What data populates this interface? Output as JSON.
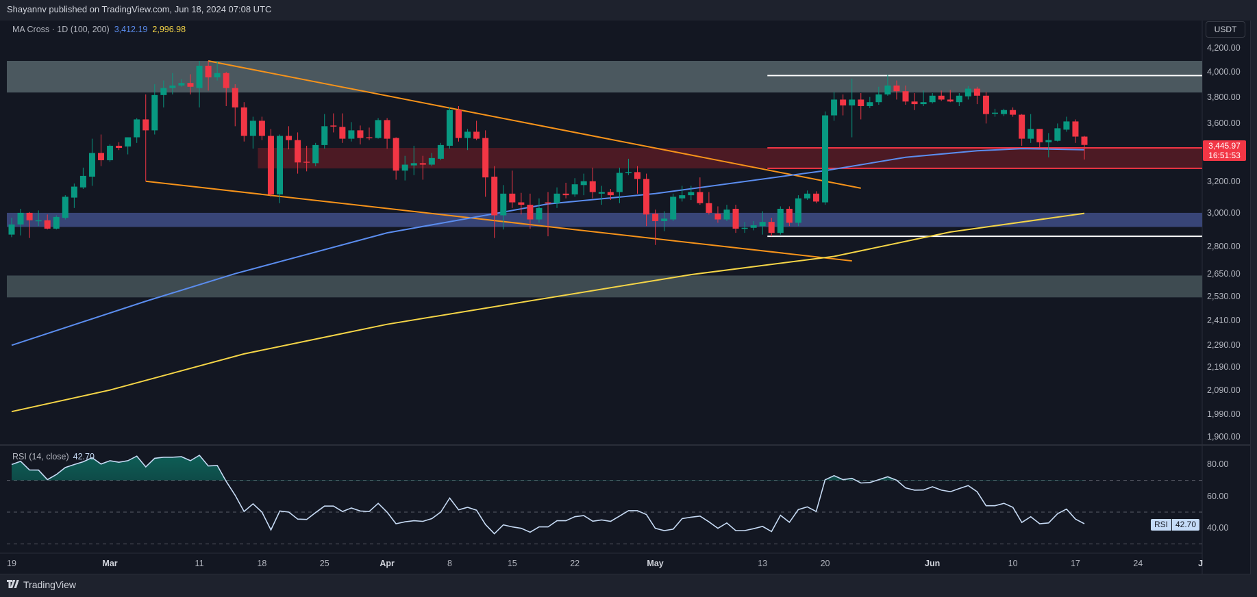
{
  "header": {
    "published": "Shayannv published on TradingView.com, Jun 18, 2024 07:08 UTC"
  },
  "legend": {
    "name": "MA Cross · 1D (100, 200)",
    "ma100": "3,412.19",
    "ma200": "2,996.98"
  },
  "currency": "USDT",
  "price_axis": [
    {
      "label": "4,200.00",
      "value": 4200
    },
    {
      "label": "4,000.00",
      "value": 4000
    },
    {
      "label": "3,800.00",
      "value": 3800
    },
    {
      "label": "3,600.00",
      "value": 3600
    },
    {
      "label": "3,200.00",
      "value": 3200
    },
    {
      "label": "3,000.00",
      "value": 3000
    },
    {
      "label": "2,800.00",
      "value": 2800
    },
    {
      "label": "2,650.00",
      "value": 2650
    },
    {
      "label": "2,530.00",
      "value": 2530
    },
    {
      "label": "2,410.00",
      "value": 2410
    },
    {
      "label": "2,290.00",
      "value": 2290
    },
    {
      "label": "2,190.00",
      "value": 2190
    },
    {
      "label": "2,090.00",
      "value": 2090
    },
    {
      "label": "1,990.00",
      "value": 1990
    },
    {
      "label": "1,900.00",
      "value": 1900
    }
  ],
  "current_price": {
    "value": "3,445.97",
    "countdown": "16:51:53"
  },
  "rsi": {
    "legend": "RSI (14, close)",
    "value": "42.70",
    "tag": "RSI",
    "axis": [
      {
        "label": "80.00",
        "value": 80
      },
      {
        "label": "60.00",
        "value": 60
      },
      {
        "label": "40.00",
        "value": 40
      }
    ],
    "levels": [
      70,
      50,
      30
    ]
  },
  "time_axis": [
    {
      "label": "19",
      "date": "2024-02-19",
      "bold": false
    },
    {
      "label": "Mar",
      "date": "2024-03-01",
      "bold": true
    },
    {
      "label": "11",
      "date": "2024-03-11",
      "bold": false
    },
    {
      "label": "18",
      "date": "2024-03-18",
      "bold": false
    },
    {
      "label": "25",
      "date": "2024-03-25",
      "bold": false
    },
    {
      "label": "Apr",
      "date": "2024-04-01",
      "bold": true
    },
    {
      "label": "8",
      "date": "2024-04-08",
      "bold": false
    },
    {
      "label": "15",
      "date": "2024-04-15",
      "bold": false
    },
    {
      "label": "22",
      "date": "2024-04-22",
      "bold": false
    },
    {
      "label": "May",
      "date": "2024-05-01",
      "bold": true
    },
    {
      "label": "13",
      "date": "2024-05-13",
      "bold": false
    },
    {
      "label": "20",
      "date": "2024-05-20",
      "bold": false
    },
    {
      "label": "Jun",
      "date": "2024-06-01",
      "bold": true
    },
    {
      "label": "10",
      "date": "2024-06-10",
      "bold": false
    },
    {
      "label": "17",
      "date": "2024-06-17",
      "bold": false
    },
    {
      "label": "24",
      "date": "2024-06-24",
      "bold": false
    },
    {
      "label": "J",
      "date": "2024-07-01",
      "bold": true
    }
  ],
  "footer": {
    "brand": "TradingView",
    "logo_icon": "tradingview-logo-icon"
  },
  "colors": {
    "up": "#089981",
    "down": "#f23645",
    "ma100": "#5b8def",
    "ma200": "#f5d547",
    "trendline": "#f7931a",
    "rsi_line": "#c7dbf5",
    "background": "#131722"
  },
  "chart_data": {
    "type": "candlestick",
    "symbol_currency": "USDT",
    "y_scale": "log",
    "ylim": [
      1870,
      4280
    ],
    "candle_fields": [
      "date",
      "open",
      "high",
      "low",
      "close"
    ],
    "candles": [
      [
        "2024-02-19",
        2870,
        2970,
        2855,
        2930
      ],
      [
        "2024-02-20",
        2930,
        3025,
        2865,
        3000
      ],
      [
        "2024-02-21",
        3000,
        3005,
        2850,
        2955
      ],
      [
        "2024-02-22",
        2955,
        3015,
        2920,
        2955
      ],
      [
        "2024-02-23",
        2955,
        2990,
        2900,
        2905
      ],
      [
        "2024-02-24",
        2905,
        2985,
        2900,
        2975
      ],
      [
        "2024-02-25",
        2970,
        3110,
        2960,
        3100
      ],
      [
        "2024-02-26",
        3095,
        3185,
        3030,
        3165
      ],
      [
        "2024-02-27",
        3160,
        3290,
        3150,
        3235
      ],
      [
        "2024-02-28",
        3230,
        3490,
        3170,
        3390
      ],
      [
        "2024-02-29",
        3390,
        3520,
        3300,
        3340
      ],
      [
        "2024-03-01",
        3340,
        3450,
        3330,
        3440
      ],
      [
        "2024-03-02",
        3440,
        3465,
        3410,
        3425
      ],
      [
        "2024-03-03",
        3435,
        3500,
        3380,
        3500
      ],
      [
        "2024-03-04",
        3500,
        3640,
        3460,
        3630
      ],
      [
        "2024-03-05",
        3630,
        3820,
        3200,
        3550
      ],
      [
        "2024-03-06",
        3550,
        3900,
        3520,
        3815
      ],
      [
        "2024-03-07",
        3815,
        3930,
        3720,
        3870
      ],
      [
        "2024-03-08",
        3870,
        3990,
        3820,
        3890
      ],
      [
        "2024-03-09",
        3890,
        3940,
        3880,
        3910
      ],
      [
        "2024-03-10",
        3910,
        3980,
        3820,
        3880
      ],
      [
        "2024-03-11",
        3870,
        4090,
        3720,
        4050
      ],
      [
        "2024-03-12",
        4050,
        4090,
        3850,
        3955
      ],
      [
        "2024-03-13",
        3955,
        4090,
        3930,
        3990
      ],
      [
        "2024-03-14",
        3990,
        4000,
        3730,
        3870
      ],
      [
        "2024-03-15",
        3870,
        3900,
        3580,
        3720
      ],
      [
        "2024-03-16",
        3720,
        3760,
        3470,
        3510
      ],
      [
        "2024-03-17",
        3510,
        3650,
        3420,
        3620
      ],
      [
        "2024-03-18",
        3620,
        3650,
        3480,
        3510
      ],
      [
        "2024-03-19",
        3510,
        3560,
        3100,
        3115
      ],
      [
        "2024-03-20",
        3115,
        3520,
        3060,
        3510
      ],
      [
        "2024-03-21",
        3510,
        3580,
        3415,
        3480
      ],
      [
        "2024-03-22",
        3480,
        3535,
        3250,
        3325
      ],
      [
        "2024-03-23",
        3330,
        3440,
        3265,
        3325
      ],
      [
        "2024-03-24",
        3320,
        3460,
        3300,
        3445
      ],
      [
        "2024-03-25",
        3445,
        3670,
        3420,
        3580
      ],
      [
        "2024-03-26",
        3585,
        3675,
        3535,
        3580
      ],
      [
        "2024-03-27",
        3575,
        3675,
        3460,
        3490
      ],
      [
        "2024-03-28",
        3490,
        3610,
        3470,
        3550
      ],
      [
        "2024-03-29",
        3550,
        3585,
        3450,
        3495
      ],
      [
        "2024-03-30",
        3500,
        3570,
        3480,
        3495
      ],
      [
        "2024-03-31",
        3495,
        3640,
        3490,
        3625
      ],
      [
        "2024-04-01",
        3625,
        3640,
        3420,
        3490
      ],
      [
        "2024-04-02",
        3495,
        3500,
        3210,
        3270
      ],
      [
        "2024-04-03",
        3270,
        3370,
        3205,
        3310
      ],
      [
        "2024-04-04",
        3305,
        3440,
        3240,
        3320
      ],
      [
        "2024-04-05",
        3320,
        3370,
        3210,
        3310
      ],
      [
        "2024-04-06",
        3310,
        3390,
        3300,
        3355
      ],
      [
        "2024-04-07",
        3350,
        3460,
        3340,
        3445
      ],
      [
        "2024-04-08",
        3440,
        3720,
        3420,
        3700
      ],
      [
        "2024-04-09",
        3700,
        3730,
        3470,
        3495
      ],
      [
        "2024-04-10",
        3495,
        3560,
        3410,
        3540
      ],
      [
        "2024-04-11",
        3540,
        3620,
        3480,
        3490
      ],
      [
        "2024-04-12",
        3495,
        3550,
        3100,
        3225
      ],
      [
        "2024-04-13",
        3230,
        3300,
        2850,
        2985
      ],
      [
        "2024-04-14",
        2985,
        3175,
        2900,
        3120
      ],
      [
        "2024-04-15",
        3120,
        3270,
        3030,
        3065
      ],
      [
        "2024-04-16",
        3065,
        3125,
        2990,
        3050
      ],
      [
        "2024-04-17",
        3050,
        3120,
        2905,
        2960
      ],
      [
        "2024-04-18",
        2960,
        3090,
        2940,
        3030
      ],
      [
        "2024-04-19",
        3065,
        3130,
        2860,
        3060
      ],
      [
        "2024-04-20",
        3060,
        3160,
        3030,
        3120
      ],
      [
        "2024-04-21",
        3120,
        3190,
        3090,
        3110
      ],
      [
        "2024-04-22",
        3115,
        3220,
        3100,
        3180
      ],
      [
        "2024-04-23",
        3175,
        3250,
        3110,
        3200
      ],
      [
        "2024-04-24",
        3200,
        3290,
        3090,
        3130
      ],
      [
        "2024-04-25",
        3120,
        3170,
        3050,
        3130
      ],
      [
        "2024-04-26",
        3130,
        3150,
        3080,
        3110
      ],
      [
        "2024-04-27",
        3130,
        3290,
        3060,
        3255
      ],
      [
        "2024-04-28",
        3255,
        3350,
        3240,
        3260
      ],
      [
        "2024-04-29",
        3260,
        3300,
        3120,
        3215
      ],
      [
        "2024-04-30",
        3215,
        3250,
        2920,
        2990
      ],
      [
        "2024-05-01",
        2995,
        3020,
        2810,
        2950
      ],
      [
        "2024-05-02",
        2950,
        3010,
        2890,
        2965
      ],
      [
        "2024-05-03",
        2960,
        3120,
        2950,
        3100
      ],
      [
        "2024-05-04",
        3090,
        3170,
        3070,
        3110
      ],
      [
        "2024-05-05",
        3110,
        3170,
        3080,
        3130
      ],
      [
        "2024-05-06",
        3130,
        3225,
        3050,
        3060
      ],
      [
        "2024-05-07",
        3060,
        3130,
        2990,
        3000
      ],
      [
        "2024-05-08",
        2995,
        3040,
        2940,
        2960
      ],
      [
        "2024-05-09",
        2960,
        3050,
        2950,
        3020
      ],
      [
        "2024-05-10",
        3025,
        3050,
        2880,
        2905
      ],
      [
        "2024-05-11",
        2910,
        2945,
        2880,
        2910
      ],
      [
        "2024-05-12",
        2910,
        2950,
        2895,
        2925
      ],
      [
        "2024-05-13",
        2920,
        3010,
        2870,
        2945
      ],
      [
        "2024-05-14",
        2945,
        2970,
        2860,
        2880
      ],
      [
        "2024-05-15",
        2880,
        3040,
        2870,
        3025
      ],
      [
        "2024-05-16",
        3025,
        3040,
        2920,
        2940
      ],
      [
        "2024-05-17",
        2940,
        3110,
        2920,
        3090
      ],
      [
        "2024-05-18",
        3090,
        3140,
        3080,
        3120
      ],
      [
        "2024-05-19",
        3120,
        3135,
        3060,
        3070
      ],
      [
        "2024-05-20",
        3065,
        3690,
        3050,
        3660
      ],
      [
        "2024-05-21",
        3660,
        3840,
        3620,
        3780
      ],
      [
        "2024-05-22",
        3780,
        3820,
        3660,
        3735
      ],
      [
        "2024-05-23",
        3735,
        3945,
        3500,
        3780
      ],
      [
        "2024-05-24",
        3780,
        3830,
        3630,
        3730
      ],
      [
        "2024-05-25",
        3730,
        3800,
        3715,
        3760
      ],
      [
        "2024-05-26",
        3760,
        3880,
        3740,
        3820
      ],
      [
        "2024-05-27",
        3820,
        3975,
        3810,
        3890
      ],
      [
        "2024-05-28",
        3890,
        3930,
        3780,
        3845
      ],
      [
        "2024-05-29",
        3845,
        3890,
        3740,
        3765
      ],
      [
        "2024-05-30",
        3765,
        3830,
        3700,
        3745
      ],
      [
        "2024-05-31",
        3745,
        3850,
        3730,
        3760
      ],
      [
        "2024-06-01",
        3760,
        3830,
        3750,
        3810
      ],
      [
        "2024-06-02",
        3810,
        3850,
        3770,
        3780
      ],
      [
        "2024-06-03",
        3780,
        3855,
        3760,
        3765
      ],
      [
        "2024-06-04",
        3760,
        3830,
        3730,
        3810
      ],
      [
        "2024-06-05",
        3805,
        3885,
        3780,
        3865
      ],
      [
        "2024-06-06",
        3865,
        3880,
        3745,
        3810
      ],
      [
        "2024-06-07",
        3810,
        3840,
        3600,
        3670
      ],
      [
        "2024-06-08",
        3675,
        3710,
        3650,
        3680
      ],
      [
        "2024-06-09",
        3670,
        3710,
        3655,
        3700
      ],
      [
        "2024-06-10",
        3700,
        3720,
        3650,
        3665
      ],
      [
        "2024-06-11",
        3665,
        3670,
        3440,
        3490
      ],
      [
        "2024-06-12",
        3490,
        3670,
        3460,
        3560
      ],
      [
        "2024-06-13",
        3560,
        3560,
        3430,
        3465
      ],
      [
        "2024-06-14",
        3465,
        3530,
        3360,
        3480
      ],
      [
        "2024-06-15",
        3475,
        3600,
        3470,
        3565
      ],
      [
        "2024-06-16",
        3555,
        3650,
        3540,
        3615
      ],
      [
        "2024-06-17",
        3615,
        3630,
        3460,
        3505
      ],
      [
        "2024-06-18",
        3505,
        3510,
        3345,
        3445.97
      ]
    ],
    "ma100": [
      [
        "2024-02-19",
        2290
      ],
      [
        "2024-03-05",
        2505
      ],
      [
        "2024-03-15",
        2650
      ],
      [
        "2024-04-01",
        2880
      ],
      [
        "2024-04-13",
        2995
      ],
      [
        "2024-04-19",
        3055
      ],
      [
        "2024-05-01",
        3120
      ],
      [
        "2024-05-20",
        3270
      ],
      [
        "2024-05-29",
        3360
      ],
      [
        "2024-06-06",
        3405
      ],
      [
        "2024-06-11",
        3420
      ],
      [
        "2024-06-18",
        3412.19
      ]
    ],
    "ma200": [
      [
        "2024-02-19",
        2000
      ],
      [
        "2024-03-01",
        2090
      ],
      [
        "2024-03-16",
        2250
      ],
      [
        "2024-04-01",
        2390
      ],
      [
        "2024-04-12",
        2470
      ],
      [
        "2024-05-05",
        2645
      ],
      [
        "2024-05-21",
        2745
      ],
      [
        "2024-06-03",
        2885
      ],
      [
        "2024-06-18",
        2996.98
      ]
    ],
    "zones": [
      {
        "name": "upper-resistance-zone",
        "top": 4090,
        "bottom": 3835,
        "color": "#4b585f"
      },
      {
        "name": "red-support-zone",
        "top": 3425,
        "bottom": 3285,
        "from": "2024-03-18",
        "color": "#4c1a24"
      },
      {
        "name": "blue-support-zone",
        "top": 3000,
        "bottom": 2915,
        "color": "#384577"
      },
      {
        "name": "lower-support-zone",
        "top": 2640,
        "bottom": 2525,
        "color": "#3e4b51"
      }
    ],
    "horizontal_lines": [
      {
        "name": "range-high-line",
        "price": 3970,
        "from": "2024-05-14",
        "color": "#ffffff"
      },
      {
        "name": "range-low-line",
        "price": 2860,
        "from": "2024-05-14",
        "color": "#ffffff"
      },
      {
        "name": "red-zone-top-line",
        "price": 3425,
        "from": "2024-05-14",
        "color": "#f23645"
      },
      {
        "name": "red-zone-bottom-line",
        "price": 3285,
        "from": "2024-05-14",
        "color": "#f23645"
      }
    ],
    "trendlines": [
      {
        "name": "upper-wedge-line",
        "points": [
          [
            "2024-03-12",
            4090
          ],
          [
            "2024-05-24",
            3155
          ]
        ]
      },
      {
        "name": "lower-wedge-line",
        "points": [
          [
            "2024-03-05",
            3200
          ],
          [
            "2024-05-23",
            2720
          ]
        ]
      }
    ],
    "rsi_values": [
      79.9,
      81.9,
      76.5,
      76.4,
      70.4,
      73.6,
      78,
      79.9,
      81.6,
      84.2,
      80.2,
      82.3,
      81.3,
      82.3,
      85.2,
      78.4,
      83.8,
      84.5,
      84.5,
      84.8,
      82.3,
      85.7,
      79,
      79.3,
      69.3,
      60.6,
      50.4,
      55.2,
      50,
      38.8,
      50.7,
      50,
      45.6,
      45.4,
      49.7,
      53.8,
      53.8,
      50.4,
      52.6,
      50.7,
      50.4,
      55.5,
      50,
      42.7,
      43.9,
      44.6,
      44.2,
      45.9,
      50,
      58.8,
      51.4,
      53,
      51.2,
      42.2,
      36.4,
      42,
      40.7,
      39.8,
      37.4,
      40.7,
      40.7,
      44.6,
      44.6,
      47.1,
      47.8,
      44.3,
      45.1,
      44.2,
      47.5,
      50.9,
      50.9,
      48.5,
      39.8,
      38.4,
      39.3,
      45.9,
      46.8,
      47.5,
      43.9,
      39.8,
      43.2,
      38.4,
      38.4,
      39.6,
      41,
      37.8,
      48,
      43.6,
      51.6,
      53.3,
      50.4,
      70.3,
      72.9,
      70.4,
      71.2,
      68.3,
      68.6,
      70.4,
      72.2,
      70,
      65.2,
      63.8,
      63.9,
      65.9,
      63.8,
      62.8,
      64.8,
      66.7,
      62.8,
      54,
      54,
      55.5,
      53,
      43.5,
      47.1,
      42.7,
      43.2,
      49,
      51.9,
      45.6,
      42.7
    ]
  }
}
